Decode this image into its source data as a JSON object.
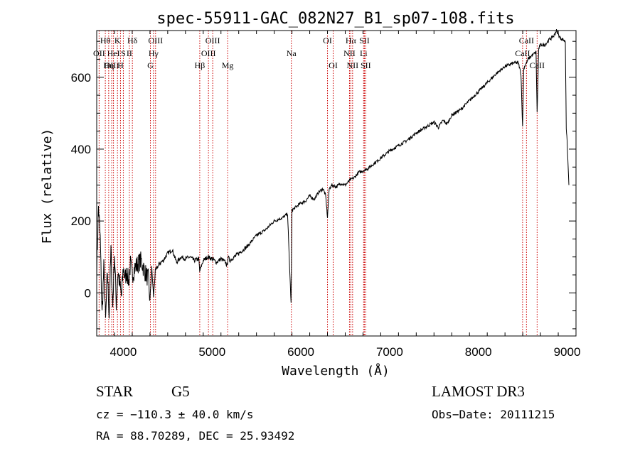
{
  "chart_data": {
    "type": "line",
    "title": "spec-55911-GAC_082N27_B1_sp07-108.fits",
    "xlabel": "Wavelength (Å)",
    "ylabel": "Flux (relative)",
    "xlim": [
      3700,
      9100
    ],
    "ylim": [
      -120,
      730
    ],
    "xticks": [
      4000,
      5000,
      6000,
      7000,
      8000,
      9000
    ],
    "yticks": [
      0,
      200,
      400,
      600
    ],
    "xminor_step": 200,
    "yminor_step": 50,
    "line_color": "#000000",
    "marker_color": "#cc0000",
    "series": [
      {
        "name": "flux",
        "x": [
          3700,
          3720,
          3740,
          3760,
          3780,
          3800,
          3820,
          3840,
          3860,
          3880,
          3900,
          3920,
          3940,
          3960,
          3980,
          4000,
          4020,
          4040,
          4060,
          4080,
          4100,
          4130,
          4160,
          4200,
          4240,
          4280,
          4300,
          4320,
          4340,
          4360,
          4400,
          4450,
          4500,
          4550,
          4600,
          4650,
          4700,
          4750,
          4800,
          4850,
          4860,
          4900,
          4950,
          5000,
          5050,
          5100,
          5150,
          5170,
          5180,
          5200,
          5250,
          5300,
          5400,
          5500,
          5600,
          5700,
          5800,
          5850,
          5890,
          5900,
          5950,
          6000,
          6050,
          6100,
          6150,
          6200,
          6250,
          6280,
          6300,
          6320,
          6350,
          6400,
          6450,
          6500,
          6560,
          6600,
          6650,
          6700,
          6750,
          6800,
          6850,
          6900,
          6950,
          7000,
          7100,
          7200,
          7300,
          7400,
          7500,
          7550,
          7600,
          7650,
          7700,
          7800,
          7900,
          8000,
          8100,
          8200,
          8300,
          8400,
          8450,
          8480,
          8498,
          8510,
          8520,
          8542,
          8560,
          8600,
          8650,
          8662,
          8680,
          8700,
          8750,
          8800,
          8850,
          8880,
          8900,
          8920,
          8950,
          8980,
          8990,
          9000,
          9020
        ],
        "y": [
          60,
          240,
          150,
          -60,
          70,
          -80,
          60,
          -60,
          120,
          -40,
          110,
          -30,
          60,
          20,
          -10,
          70,
          40,
          60,
          30,
          80,
          50,
          70,
          80,
          90,
          60,
          40,
          -20,
          70,
          -10,
          60,
          80,
          90,
          110,
          120,
          85,
          100,
          95,
          100,
          90,
          95,
          60,
          90,
          100,
          95,
          85,
          95,
          85,
          75,
          100,
          90,
          100,
          110,
          130,
          160,
          175,
          200,
          210,
          220,
          -30,
          230,
          240,
          250,
          255,
          270,
          260,
          280,
          290,
          270,
          210,
          290,
          300,
          295,
          305,
          300,
          315,
          320,
          335,
          340,
          345,
          355,
          365,
          375,
          385,
          395,
          410,
          425,
          445,
          460,
          475,
          460,
          480,
          470,
          495,
          510,
          535,
          560,
          585,
          610,
          630,
          640,
          640,
          610,
          460,
          620,
          630,
          640,
          650,
          660,
          670,
          500,
          680,
          690,
          690,
          705,
          715,
          730,
          720,
          710,
          705,
          700,
          460,
          420,
          300
        ]
      }
    ],
    "line_markers": [
      {
        "label": "Hθ",
        "x": 3797,
        "row": 0
      },
      {
        "label": "OII",
        "x": 3727,
        "row": 1
      },
      {
        "label": "OIII",
        "x": 3869,
        "row": 2
      },
      {
        "label": "K",
        "x": 3934,
        "row": 0
      },
      {
        "label": "HeI",
        "x": 3889,
        "row": 1
      },
      {
        "label": "Hη",
        "x": 3835,
        "row": 2
      },
      {
        "label": "S",
        "x": 4000,
        "row": 1
      },
      {
        "label": "H",
        "x": 3968,
        "row": 2
      },
      {
        "label": "Hδ",
        "x": 4102,
        "row": 0
      },
      {
        "label": "II",
        "x": 4068,
        "row": 1
      },
      {
        "label": "OIII",
        "x": 4363,
        "row": 0
      },
      {
        "label": "Hγ",
        "x": 4340,
        "row": 1
      },
      {
        "label": "G",
        "x": 4305,
        "row": 2
      },
      {
        "label": "OIII",
        "x": 5007,
        "row": 0
      },
      {
        "label": "OIII",
        "x": 4959,
        "row": 1
      },
      {
        "label": "Hβ",
        "x": 4861,
        "row": 2
      },
      {
        "label": "Mg",
        "x": 5175,
        "row": 2
      },
      {
        "label": "Na",
        "x": 5893,
        "row": 1
      },
      {
        "label": "OI",
        "x": 6300,
        "row": 0
      },
      {
        "label": "OI",
        "x": 6364,
        "row": 2
      },
      {
        "label": "Hα",
        "x": 6563,
        "row": 0
      },
      {
        "label": "NII",
        "x": 6548,
        "row": 1
      },
      {
        "label": "NII",
        "x": 6583,
        "row": 2
      },
      {
        "label": "SII",
        "x": 6716,
        "row": 0
      },
      {
        "label": "Li",
        "x": 6707,
        "row": 1
      },
      {
        "label": "SII",
        "x": 6731,
        "row": 2
      },
      {
        "label": "CaII",
        "x": 8542,
        "row": 0
      },
      {
        "label": "CaII",
        "x": 8498,
        "row": 1
      },
      {
        "label": "CaII",
        "x": 8662,
        "row": 2
      }
    ]
  },
  "info": {
    "object_class": "STAR",
    "subclass": "G5",
    "survey": "LAMOST DR3",
    "cz": "cz = −110.3 ± 40.0 km/s",
    "obs_date": "Obs−Date: 20111215",
    "coords": "RA =  88.70289, DEC =  25.93492"
  }
}
